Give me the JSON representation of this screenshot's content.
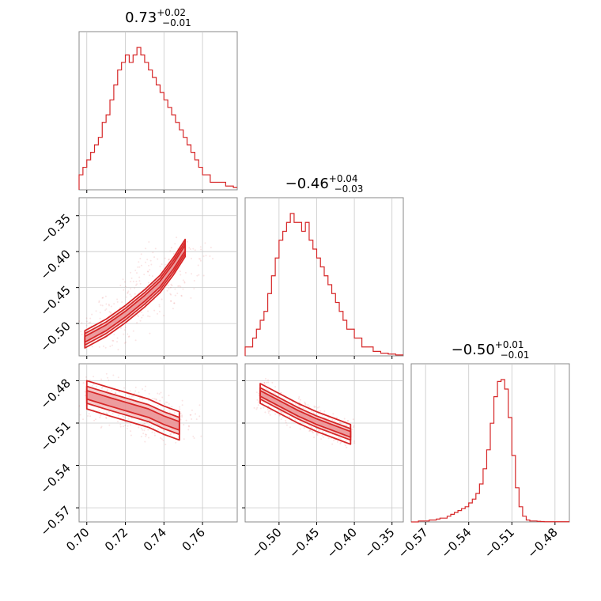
{
  "figure": {
    "colors": {
      "line": "#d62728",
      "fill_light": "#f2b6b7",
      "fill_mid": "#e8888a",
      "grid": "#c8c8c8",
      "frame": "#888888"
    }
  },
  "chart_data": [
    {
      "type": "histogram",
      "panel": "row1-col1",
      "title": {
        "base": "0.73",
        "plus": "+0.02",
        "minus": "−0.01"
      },
      "xlim": [
        0.696,
        0.778
      ],
      "ticks": [
        0.7,
        0.72,
        0.74,
        0.76
      ],
      "tick_labels": [],
      "bin_start": 0.696,
      "bin_width": 0.002,
      "counts": [
        2,
        3,
        4,
        5,
        6,
        7,
        9,
        10,
        12,
        14,
        16,
        17,
        18,
        17,
        18,
        19,
        18,
        17,
        16,
        15,
        14,
        13,
        12,
        11,
        10,
        9,
        8,
        7,
        6,
        5,
        4,
        3,
        2,
        2,
        1,
        1,
        1,
        1,
        0.5,
        0.5,
        0.3
      ]
    },
    {
      "type": "histogram",
      "panel": "row2-col2",
      "title": {
        "base": "−0.46",
        "plus": "+0.04",
        "minus": "−0.03"
      },
      "xlim": [
        -0.545,
        -0.335
      ],
      "ticks": [
        -0.5,
        -0.45,
        -0.4,
        -0.35
      ],
      "tick_labels": [],
      "bin_start": -0.545,
      "bin_width": 0.005,
      "counts": [
        1,
        1,
        2,
        3,
        4,
        5,
        7,
        9,
        11,
        13,
        14,
        15,
        16,
        15,
        15,
        14,
        15,
        13,
        12,
        11,
        10,
        9,
        8,
        7,
        6,
        5,
        4,
        3,
        3,
        2,
        2,
        1,
        1,
        1,
        0.5,
        0.5,
        0.3,
        0.3,
        0.2,
        0.2,
        0.1,
        0.1
      ]
    },
    {
      "type": "histogram",
      "panel": "row3-col3",
      "title": {
        "base": "−0.50",
        "plus": "+0.01",
        "minus": "−0.01"
      },
      "xlim": [
        -0.58,
        -0.47
      ],
      "ticks": [
        -0.57,
        -0.54,
        -0.51,
        -0.48
      ],
      "tick_labels": [
        "−0.57",
        "−0.54",
        "−0.51",
        "−0.48"
      ],
      "bin_start": -0.58,
      "bin_width": 0.0025,
      "counts": [
        0,
        0,
        0.5,
        0.5,
        0.5,
        1,
        1,
        1.5,
        2,
        2,
        3,
        4,
        5,
        6,
        7,
        8,
        10,
        12,
        15,
        20,
        28,
        38,
        52,
        66,
        74,
        75,
        70,
        55,
        35,
        18,
        8,
        3,
        1,
        0.5,
        0.5,
        0.3,
        0.2,
        0.1,
        0.1,
        0.1,
        0.1,
        0.1,
        0.1,
        0.1
      ]
    },
    {
      "type": "contour",
      "panel": "row2-col1",
      "xlim": [
        0.696,
        0.778
      ],
      "ylim": [
        -0.545,
        -0.325
      ],
      "xticks": [
        0.7,
        0.72,
        0.74,
        0.76
      ],
      "yticks": [
        -0.35,
        -0.4,
        -0.45,
        -0.5
      ],
      "xtick_labels": [],
      "ytick_labels": [
        "−0.35",
        "−0.40",
        "−0.45",
        "−0.50"
      ],
      "ridge": [
        [
          0.699,
          -0.522
        ],
        [
          0.71,
          -0.506
        ],
        [
          0.72,
          -0.487
        ],
        [
          0.73,
          -0.465
        ],
        [
          0.738,
          -0.445
        ],
        [
          0.745,
          -0.42
        ],
        [
          0.751,
          -0.395
        ]
      ],
      "widths": [
        0.004,
        0.008,
        0.012
      ]
    },
    {
      "type": "contour",
      "panel": "row3-col1",
      "xlim": [
        0.696,
        0.778
      ],
      "ylim": [
        -0.58,
        -0.468
      ],
      "xticks": [
        0.7,
        0.72,
        0.74,
        0.76
      ],
      "yticks": [
        -0.48,
        -0.51,
        -0.54,
        -0.57
      ],
      "xtick_labels": [
        "0.70",
        "0.72",
        "0.74",
        "0.76"
      ],
      "ytick_labels": [
        "−0.48",
        "−0.51",
        "−0.54",
        "−0.57"
      ],
      "ridge": [
        [
          0.7,
          -0.49
        ],
        [
          0.712,
          -0.495
        ],
        [
          0.722,
          -0.499
        ],
        [
          0.732,
          -0.503
        ],
        [
          0.74,
          -0.508
        ],
        [
          0.748,
          -0.512
        ]
      ],
      "widths": [
        0.003,
        0.006,
        0.01
      ]
    },
    {
      "type": "contour",
      "panel": "row3-col2",
      "xlim": [
        -0.545,
        -0.335
      ],
      "ylim": [
        -0.58,
        -0.468
      ],
      "xticks": [
        -0.5,
        -0.45,
        -0.4,
        -0.35
      ],
      "yticks": [
        -0.48,
        -0.51,
        -0.54,
        -0.57
      ],
      "xtick_labels": [
        "−0.50",
        "−0.45",
        "−0.40",
        "−0.35"
      ],
      "ytick_labels": [],
      "ridge": [
        [
          -0.525,
          -0.489
        ],
        [
          -0.5,
          -0.496
        ],
        [
          -0.475,
          -0.503
        ],
        [
          -0.45,
          -0.509
        ],
        [
          -0.425,
          -0.514
        ],
        [
          -0.405,
          -0.518
        ]
      ],
      "widths": [
        0.002,
        0.004,
        0.007
      ]
    }
  ]
}
